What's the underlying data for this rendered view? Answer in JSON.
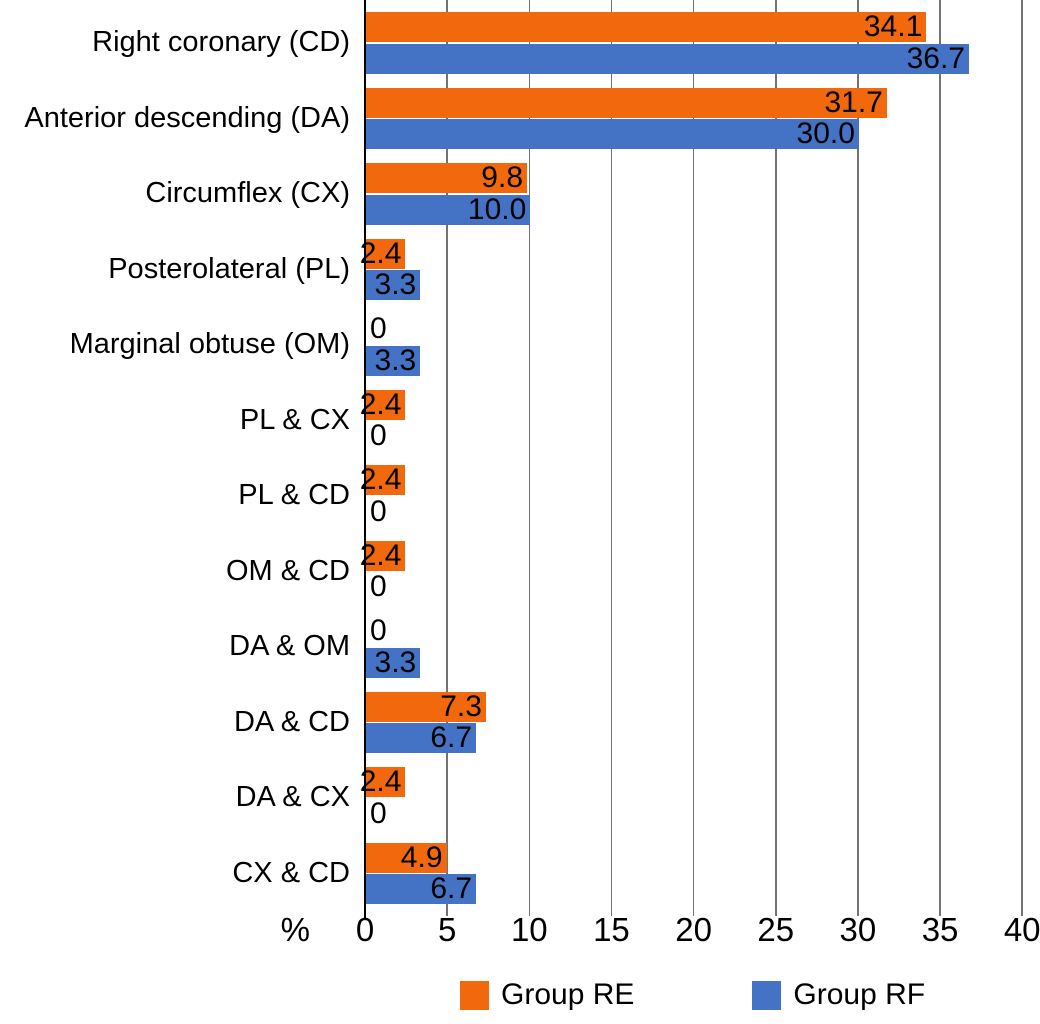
{
  "chart_data": {
    "type": "bar",
    "orientation": "horizontal",
    "title": "",
    "xlabel": "%",
    "xlim": [
      0,
      40
    ],
    "x_ticks": [
      0,
      5,
      10,
      15,
      20,
      25,
      30,
      35,
      40
    ],
    "grid": true,
    "legend_position": "bottom",
    "categories": [
      "Right coronary (CD)",
      "Anterior descending (DA)",
      "Circumflex (CX)",
      "Posterolateral (PL)",
      "Marginal obtuse (OM)",
      "PL & CX",
      "PL & CD",
      "OM & CD",
      "DA & OM",
      "DA & CD",
      "DA & CX",
      "CX & CD"
    ],
    "series": [
      {
        "name": "Group RE",
        "color": "#F2690D",
        "values": [
          34.1,
          31.7,
          9.8,
          2.4,
          0,
          2.4,
          2.4,
          2.4,
          0,
          7.3,
          2.4,
          4.9
        ],
        "labels": [
          "34.1",
          "31.7",
          "9.8",
          "2.4",
          "0",
          "2.4",
          "2.4",
          "2.4",
          "0",
          "7.3",
          "2.4",
          "4.9"
        ]
      },
      {
        "name": "Group RF",
        "color": "#4472C4",
        "values": [
          36.7,
          30.0,
          10.0,
          3.3,
          3.3,
          0,
          0,
          0,
          3.3,
          6.7,
          0,
          6.7
        ],
        "labels": [
          "36.7",
          "30.0",
          "10.0",
          "3.3",
          "3.3",
          "0",
          "0",
          "0",
          "3.3",
          "6.7",
          "0",
          "6.7"
        ]
      }
    ],
    "colors": {
      "grid": "#737373",
      "axis": "#000000",
      "value_label": "#000000"
    }
  },
  "legend": {
    "items": [
      {
        "label": "Group RE",
        "color": "#F2690D"
      },
      {
        "label": "Group RF",
        "color": "#4472C4"
      }
    ]
  }
}
